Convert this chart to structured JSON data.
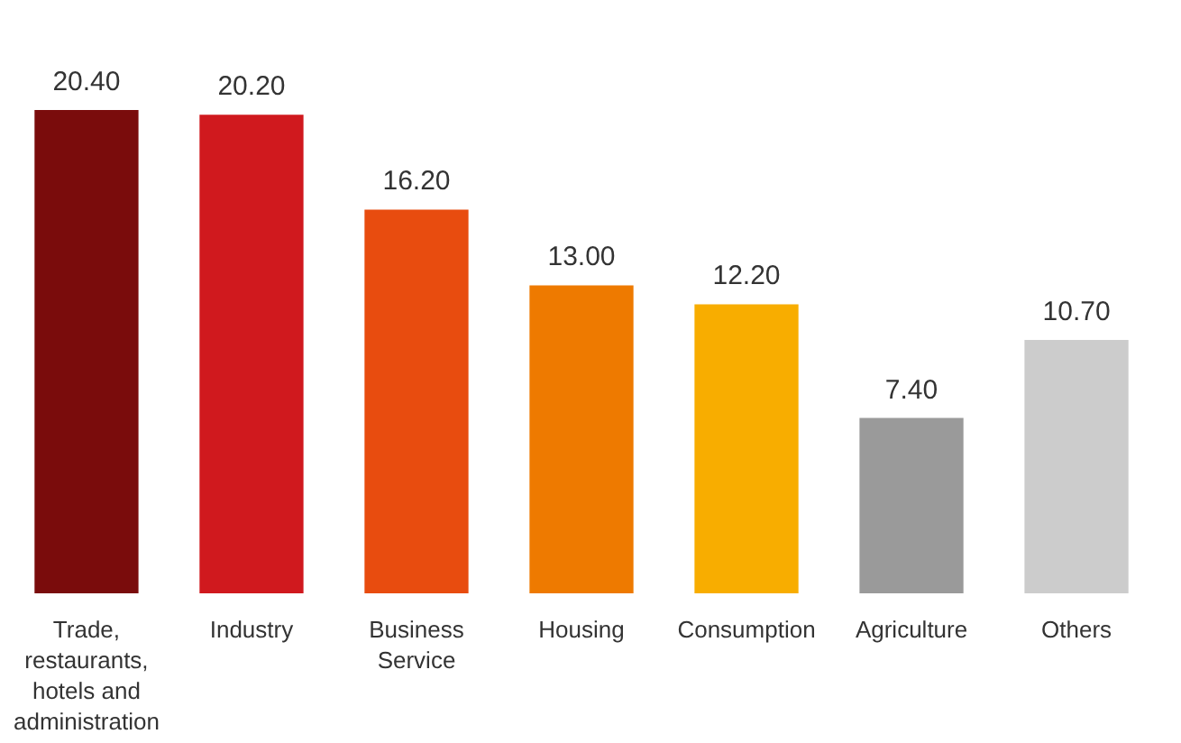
{
  "chart_data": {
    "type": "bar",
    "categories": [
      "Trade, restaurants, hotels and administration",
      "Industry",
      "Business Service",
      "Housing",
      "Consumption",
      "Agriculture",
      "Others"
    ],
    "values": [
      20.4,
      20.2,
      16.2,
      13.0,
      12.2,
      7.4,
      10.7
    ],
    "colors": [
      "#7a0c0c",
      "#d0191e",
      "#e84c0f",
      "#ee7a00",
      "#f8ad00",
      "#9a9a9a",
      "#cccccc"
    ],
    "value_labels": [
      "20.40",
      "20.20",
      "16.20",
      "13.00",
      "12.20",
      "7.40",
      "10.70"
    ]
  }
}
